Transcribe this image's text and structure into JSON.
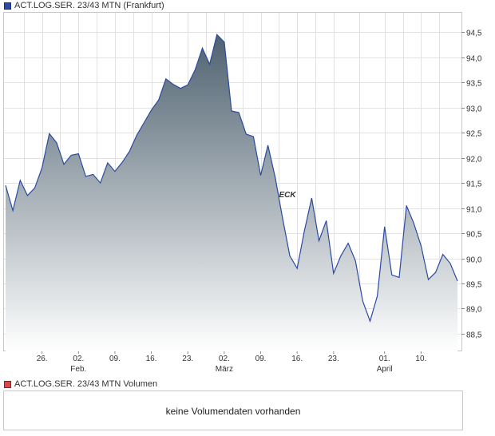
{
  "price_legend": {
    "label": "ACT.LOG.SER. 23/43 MTN (Frankfurt)",
    "color": "#2b4aa0"
  },
  "volume_legend": {
    "label": "ACT.LOG.SER. 23/43 MTN Volumen",
    "color": "#d84a4a"
  },
  "volume_panel": {
    "message": "keine Volumendaten vorhanden"
  },
  "watermark": "ECK",
  "chart_data": {
    "type": "area",
    "title": "",
    "xlabel": "",
    "ylabel": "",
    "ylim": [
      88.15,
      94.9
    ],
    "grid": true,
    "y_ticks": [
      "88,5",
      "89,0",
      "89,5",
      "90,0",
      "90,5",
      "91,0",
      "91,5",
      "92,0",
      "92,5",
      "93,0",
      "93,5",
      "94,0",
      "94,5"
    ],
    "x_ticks": [
      {
        "index": 5,
        "label": "26.",
        "sublabel": ""
      },
      {
        "index": 10,
        "label": "02.",
        "sublabel": "Feb."
      },
      {
        "index": 15,
        "label": "09.",
        "sublabel": ""
      },
      {
        "index": 20,
        "label": "16.",
        "sublabel": ""
      },
      {
        "index": 25,
        "label": "23.",
        "sublabel": ""
      },
      {
        "index": 30,
        "label": "02.",
        "sublabel": "März"
      },
      {
        "index": 35,
        "label": "09.",
        "sublabel": ""
      },
      {
        "index": 40,
        "label": "16.",
        "sublabel": ""
      },
      {
        "index": 45,
        "label": "23.",
        "sublabel": ""
      },
      {
        "index": 52,
        "label": "01.",
        "sublabel": "April"
      },
      {
        "index": 57,
        "label": "10.",
        "sublabel": ""
      }
    ],
    "series": [
      {
        "values": [
          91.45,
          90.95,
          91.55,
          91.25,
          91.4,
          91.8,
          92.48,
          92.3,
          91.87,
          92.05,
          92.08,
          91.63,
          91.67,
          91.5,
          91.9,
          91.73,
          91.91,
          92.13,
          92.45,
          92.7,
          92.95,
          93.15,
          93.57,
          93.46,
          93.38,
          93.45,
          93.75,
          94.18,
          93.86,
          94.45,
          94.3,
          92.93,
          92.9,
          92.47,
          92.42,
          91.65,
          92.25,
          91.6,
          90.8,
          90.05,
          89.8,
          90.55,
          91.2,
          90.35,
          90.75,
          89.7,
          90.05,
          90.3,
          89.95,
          89.15,
          88.75,
          89.25,
          90.63,
          89.67,
          89.62,
          91.05,
          90.7,
          90.25,
          89.58,
          89.72,
          90.08,
          89.9,
          89.55
        ]
      }
    ]
  }
}
